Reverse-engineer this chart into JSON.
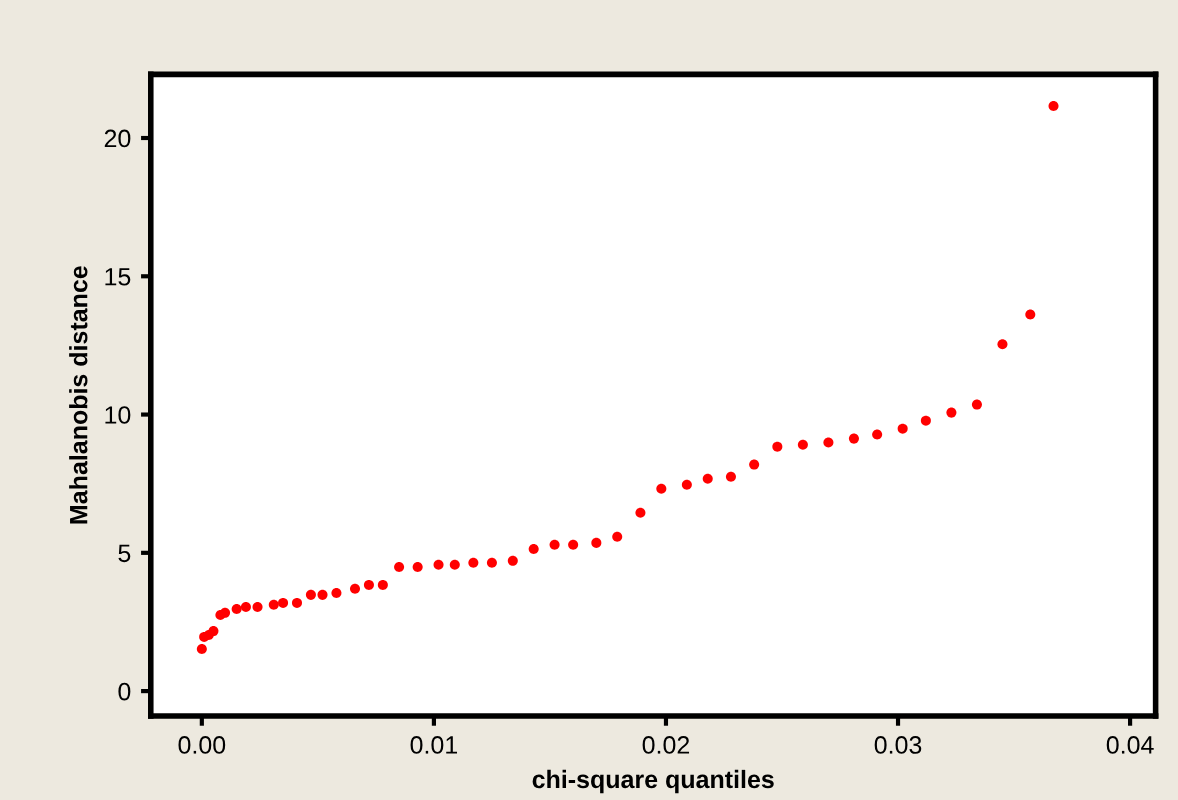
{
  "chart_data": {
    "type": "scatter",
    "xlabel": "chi-square quantiles",
    "ylabel": "Mahalanobis distance",
    "x": [
      0.0,
      0.0001,
      0.0003,
      0.0005,
      0.0008,
      0.001,
      0.0015,
      0.0019,
      0.0024,
      0.0031,
      0.0035,
      0.0041,
      0.0047,
      0.0052,
      0.0058,
      0.0066,
      0.0072,
      0.0078,
      0.0085,
      0.0093,
      0.0102,
      0.0109,
      0.0117,
      0.0125,
      0.0134,
      0.0143,
      0.0152,
      0.016,
      0.017,
      0.0179,
      0.0189,
      0.0198,
      0.0209,
      0.0218,
      0.0228,
      0.0238,
      0.0248,
      0.0259,
      0.027,
      0.0281,
      0.0291,
      0.0302,
      0.0312,
      0.0323,
      0.0334,
      0.0345,
      0.0357,
      0.0367
    ],
    "values": [
      1.52,
      1.96,
      2.03,
      2.17,
      2.75,
      2.83,
      2.97,
      3.04,
      3.04,
      3.12,
      3.19,
      3.19,
      3.48,
      3.48,
      3.55,
      3.7,
      3.84,
      3.84,
      4.49,
      4.49,
      4.57,
      4.57,
      4.64,
      4.64,
      4.71,
      5.14,
      5.29,
      5.29,
      5.36,
      5.58,
      6.45,
      7.32,
      7.46,
      7.68,
      7.75,
      8.19,
      8.84,
      8.91,
      8.99,
      9.13,
      9.28,
      9.49,
      9.78,
      10.07,
      10.36,
      12.54,
      13.62,
      21.16
    ],
    "color": "#ff0000",
    "marker": "circle",
    "grid": false,
    "xlim": [
      -0.0022,
      0.0411
    ],
    "ylim": [
      -0.9,
      22.3
    ],
    "xticks": [
      {
        "value": 0,
        "label": "0.00"
      },
      {
        "value": 0.01,
        "label": "0.01"
      },
      {
        "value": 0.02,
        "label": "0.02"
      },
      {
        "value": 0.03,
        "label": "0.03"
      },
      {
        "value": 0.04,
        "label": "0.04"
      }
    ],
    "yticks": [
      0,
      5,
      10,
      15,
      20
    ]
  }
}
